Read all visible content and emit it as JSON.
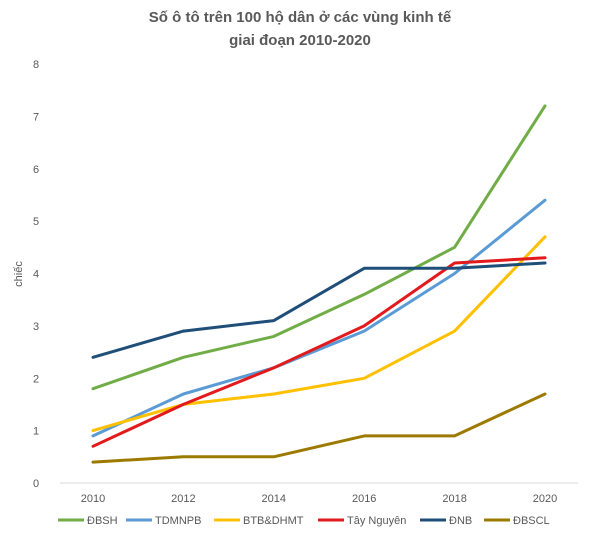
{
  "chart_data": {
    "type": "line",
    "title_line1": "Số ô tô trên 100 hộ dân ở các vùng kinh tế",
    "title_line2": "giai đoạn 2010-2020",
    "xlabel": "",
    "ylabel": "chiếc",
    "x": [
      "2010",
      "2012",
      "2014",
      "2016",
      "2018",
      "2020"
    ],
    "yticks": [
      "0",
      "1",
      "2",
      "3",
      "4",
      "5",
      "6",
      "7",
      "8"
    ],
    "ylim": [
      0,
      8
    ],
    "grid": false,
    "legend_position": "bottom",
    "series": [
      {
        "name": "ĐBSH",
        "color": "#70ad47",
        "values": [
          1.8,
          2.4,
          2.8,
          3.6,
          4.5,
          7.2
        ]
      },
      {
        "name": "TDMNPB",
        "color": "#5b9bd5",
        "values": [
          0.9,
          1.7,
          2.2,
          2.9,
          4.0,
          5.4
        ]
      },
      {
        "name": "BTB&DHMT",
        "color": "#ffc000",
        "values": [
          1.0,
          1.5,
          1.7,
          2.0,
          2.9,
          4.7
        ]
      },
      {
        "name": "Tây Nguyên",
        "color": "#e31a1c",
        "values": [
          0.7,
          1.5,
          2.2,
          3.0,
          4.2,
          4.3
        ]
      },
      {
        "name": "ĐNB",
        "color": "#1f4e79",
        "values": [
          2.4,
          2.9,
          3.1,
          4.1,
          4.1,
          4.2
        ]
      },
      {
        "name": "ĐBSCL",
        "color": "#9c7a00",
        "values": [
          0.4,
          0.5,
          0.5,
          0.9,
          0.9,
          1.7
        ]
      }
    ]
  }
}
